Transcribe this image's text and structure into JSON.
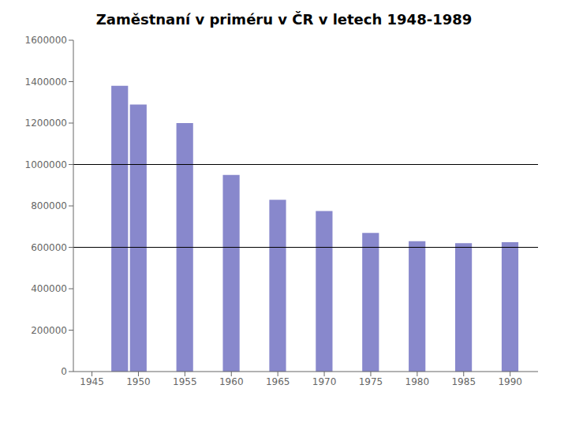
{
  "chart_data": {
    "type": "bar",
    "title": "Zaměstnaní v priméru v ČR v letech 1948-1989",
    "x": [
      1948,
      1950,
      1955,
      1960,
      1965,
      1970,
      1975,
      1980,
      1985,
      1990
    ],
    "values": [
      1380000,
      1290000,
      1200000,
      950000,
      830000,
      775000,
      670000,
      630000,
      620000,
      625000
    ],
    "color": "#8888cc",
    "xlim": [
      1943,
      1993
    ],
    "xticks": [
      1945,
      1950,
      1955,
      1960,
      1965,
      1970,
      1975,
      1980,
      1985,
      1990
    ],
    "ylim": [
      0,
      1600000
    ],
    "yticks": [
      0,
      200000,
      400000,
      600000,
      800000,
      1000000,
      1200000,
      1400000,
      1600000
    ],
    "hlines": [
      600000,
      1000000
    ],
    "grid": false
  }
}
